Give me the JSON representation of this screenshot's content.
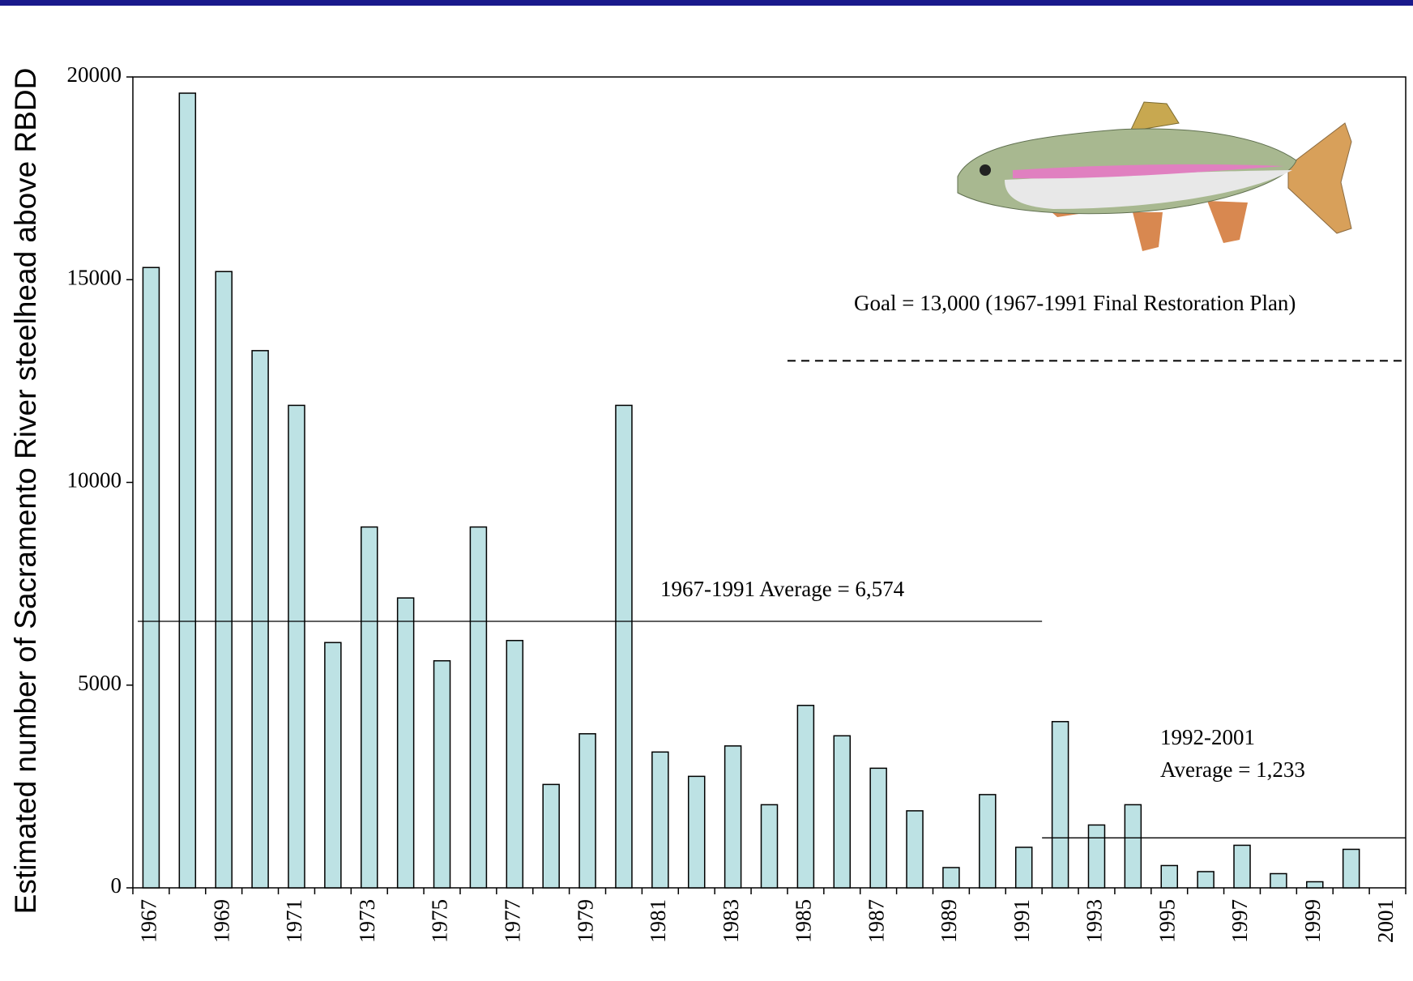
{
  "chart_data": {
    "type": "bar",
    "y_label": "Estimated number of Sacramento River steelhead above RBDD",
    "categories": [
      "1967",
      null,
      "1969",
      null,
      "1971",
      null,
      "1973",
      null,
      "1975",
      null,
      "1977",
      null,
      "1979",
      null,
      "1981",
      null,
      "1983",
      null,
      "1985",
      null,
      "1987",
      null,
      "1989",
      null,
      "1991",
      null,
      "1993",
      null,
      "1995",
      null,
      "1997",
      null,
      "1999",
      null,
      "2001"
    ],
    "values": [
      15300,
      19600,
      15200,
      13250,
      11900,
      6050,
      8900,
      7150,
      5600,
      8900,
      6100,
      2550,
      3800,
      11900,
      3350,
      2750,
      3500,
      2050,
      4500,
      3750,
      2950,
      1900,
      500,
      2300,
      1000,
      4100,
      1550,
      2050,
      550,
      400,
      1050,
      350,
      150,
      950,
      null
    ],
    "color": "#bde2e4",
    "ylim": [
      0,
      20000
    ],
    "yticks": [
      0,
      5000,
      10000,
      15000,
      20000
    ],
    "grid": false,
    "ref_lines": [
      {
        "label": [
          "Goal = 13,000 (1967-1991 Final Restoration Plan)"
        ],
        "value": 13000,
        "dashed": true
      },
      {
        "label": [
          "1967-1991 Average = 6,574"
        ],
        "value": 6574,
        "dashed": false
      },
      {
        "label": [
          "1992-2001",
          "Average = 1,233"
        ],
        "value": 1233,
        "dashed": false
      }
    ]
  }
}
